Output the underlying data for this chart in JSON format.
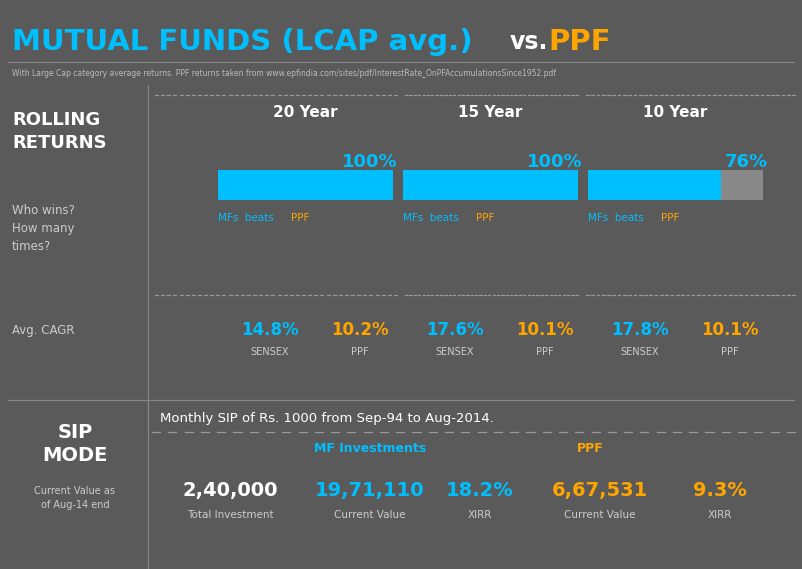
{
  "bg_color": "#5a5a5a",
  "cyan": "#00BFFF",
  "yellow": "#FFA500",
  "white": "#FFFFFF",
  "gray_text": "#CCCCCC",
  "bar_gray": "#888888",
  "subtitle": "With Large Cap category average returns. PPF returns taken from www.epfindia.com/sites/pdf/InterestRate_OnPFAccumulationsSince1952.pdf",
  "periods": [
    "20 Year",
    "15 Year",
    "10 Year"
  ],
  "win_pct": [
    100,
    100,
    76
  ],
  "sensex_cagr": [
    "14.8%",
    "17.6%",
    "17.8%"
  ],
  "ppf_cagr": [
    "10.2%",
    "10.1%",
    "10.1%"
  ],
  "sip_header": "Monthly SIP of Rs. 1000 from Sep-94 to Aug-2014.",
  "total_investment": "2,40,000",
  "total_inv_label": "Total Investment",
  "mf_investments_label": "MF Investments",
  "mf_current_value": "19,71,110",
  "mf_xirr": "18.2%",
  "mf_cv_label": "Current Value",
  "mf_xirr_label": "XIRR",
  "ppf_label": "PPF",
  "ppf_current_value": "6,67,531",
  "ppf_xirr": "9.3%",
  "ppf_cv_label": "Current Value",
  "ppf_xirr_label": "XIRR"
}
